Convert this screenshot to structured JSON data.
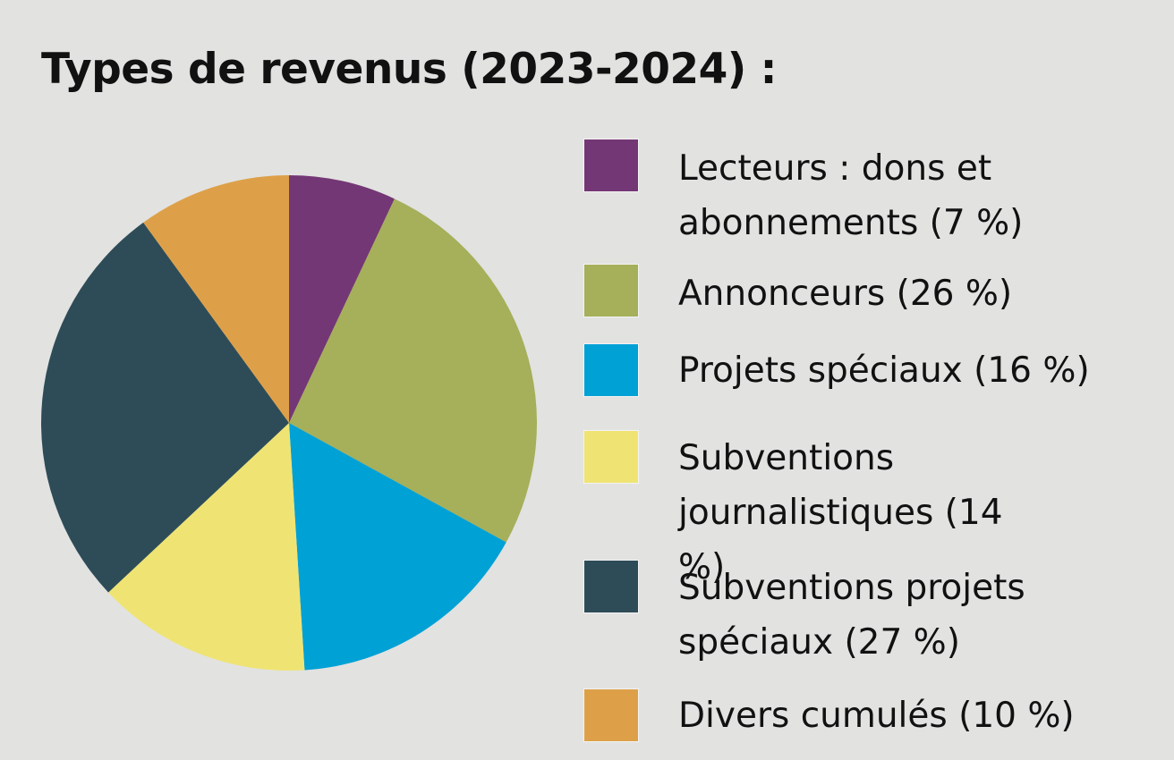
{
  "chart_data": {
    "type": "pie",
    "title": "Types de revenus (2023-2024) :",
    "slices": [
      {
        "label": "Lecteurs : dons et abonnements  (7 %)",
        "value": 7,
        "color": "#743775"
      },
      {
        "label": "Annonceurs (26 %)",
        "value": 26,
        "color": "#a6af5a"
      },
      {
        "label": "Projets spéciaux (16 %)",
        "value": 16,
        "color": "#00a1d5"
      },
      {
        "label": "Subventions journalistiques (14 %)",
        "value": 14,
        "color": "#efe473"
      },
      {
        "label": "Subventions projets spéciaux (27 %)",
        "value": 27,
        "color": "#2e4c57"
      },
      {
        "label": "Divers cumulés (10 %)",
        "value": 10,
        "color": "#dda049"
      }
    ],
    "start_angle_deg": 0,
    "direction": "clockwise",
    "legend_position": "right"
  }
}
